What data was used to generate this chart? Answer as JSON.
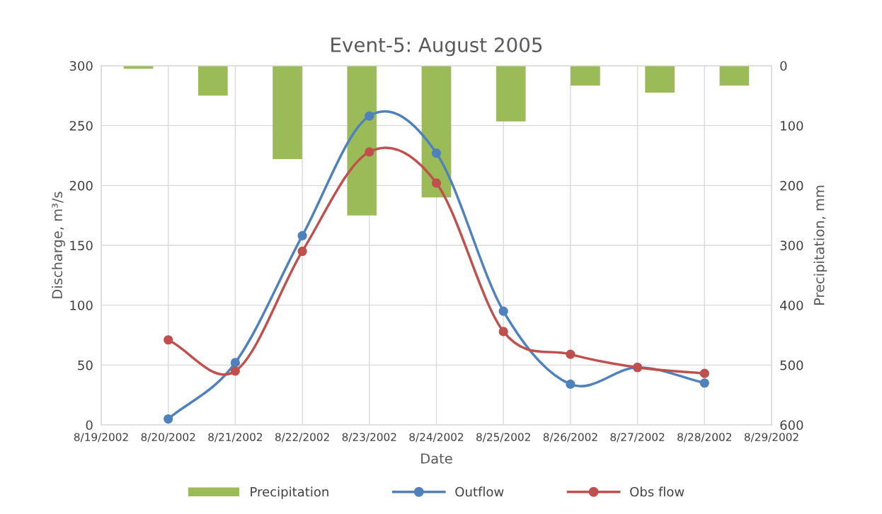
{
  "chart_data": {
    "type": "line",
    "title": "Event-5: August 2005",
    "xlabel": "Date",
    "ylabel": "Discharge, m³/s",
    "y2label": "Precipitation, mm",
    "x": [
      "2002-08-20",
      "2002-08-21",
      "2002-08-22",
      "2002-08-23",
      "2002-08-24",
      "2002-08-25",
      "2002-08-26",
      "2002-08-27",
      "2002-08-28"
    ],
    "series": [
      {
        "name": "Precipitation",
        "type": "bar",
        "axis": "y2",
        "color": "#9bbb59",
        "x": [
          "2002-08-19T13:20",
          "2002-08-20T16:00",
          "2002-08-21T18:40",
          "2002-08-22T21:20",
          "2002-08-24T00:00",
          "2002-08-25T02:40",
          "2002-08-26T05:20",
          "2002-08-27T08:00",
          "2002-08-28T10:40"
        ],
        "values": [
          5,
          50,
          156,
          250,
          220,
          93,
          33,
          45,
          33
        ]
      },
      {
        "name": "Outflow",
        "color": "#4f81bd",
        "values": [
          5,
          52,
          158,
          258,
          227,
          95,
          34,
          48,
          35
        ]
      },
      {
        "name": "Obs flow",
        "color": "#c0504d",
        "values": [
          71,
          45,
          145,
          228,
          202,
          78,
          59,
          48,
          43
        ]
      }
    ],
    "xlim": [
      "2002-08-19",
      "2002-08-29"
    ],
    "xticks": [
      {
        "value": "2002-08-19",
        "label": "8/19/2002"
      },
      {
        "value": "2002-08-20",
        "label": "8/20/2002"
      },
      {
        "value": "2002-08-21",
        "label": "8/21/2002"
      },
      {
        "value": "2002-08-22",
        "label": "8/22/2002"
      },
      {
        "value": "2002-08-23",
        "label": "8/23/2002"
      },
      {
        "value": "2002-08-24",
        "label": "8/24/2002"
      },
      {
        "value": "2002-08-25",
        "label": "8/25/2002"
      },
      {
        "value": "2002-08-26",
        "label": "8/26/2002"
      },
      {
        "value": "2002-08-27",
        "label": "8/27/2002"
      },
      {
        "value": "2002-08-28",
        "label": "8/28/2002"
      },
      {
        "value": "2002-08-29",
        "label": "8/29/2002"
      }
    ],
    "ylim": [
      0,
      300
    ],
    "yticks": [
      0,
      50,
      100,
      150,
      200,
      250,
      300
    ],
    "y2lim": [
      600,
      0
    ],
    "y2ticks": [
      0,
      100,
      200,
      300,
      400,
      500,
      600
    ],
    "grid": true,
    "legend": "bottom",
    "marker": "circle",
    "line_style": "solid"
  }
}
